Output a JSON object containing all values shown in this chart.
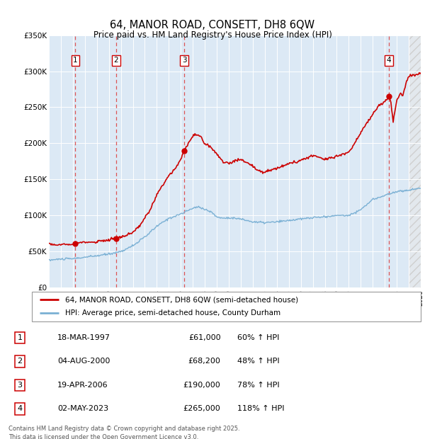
{
  "title": "64, MANOR ROAD, CONSETT, DH8 6QW",
  "subtitle": "Price paid vs. HM Land Registry's House Price Index (HPI)",
  "legend_line1": "64, MANOR ROAD, CONSETT, DH8 6QW (semi-detached house)",
  "legend_line2": "HPI: Average price, semi-detached house, County Durham",
  "footer": "Contains HM Land Registry data © Crown copyright and database right 2025.\nThis data is licensed under the Open Government Licence v3.0.",
  "transactions": [
    {
      "num": 1,
      "date": "18-MAR-1997",
      "price": 61000,
      "year": 1997.21,
      "hpi_pct": "60%"
    },
    {
      "num": 2,
      "date": "04-AUG-2000",
      "price": 68200,
      "year": 2000.59,
      "hpi_pct": "48%"
    },
    {
      "num": 3,
      "date": "19-APR-2006",
      "price": 190000,
      "year": 2006.3,
      "hpi_pct": "78%"
    },
    {
      "num": 4,
      "date": "02-MAY-2023",
      "price": 265000,
      "year": 2023.34,
      "hpi_pct": "118%"
    }
  ],
  "xlim": [
    1995,
    2026
  ],
  "ylim": [
    0,
    350000
  ],
  "yticks": [
    0,
    50000,
    100000,
    150000,
    200000,
    250000,
    300000,
    350000
  ],
  "ytick_labels": [
    "£0",
    "£50K",
    "£100K",
    "£150K",
    "£200K",
    "£250K",
    "£300K",
    "£350K"
  ],
  "bg_color": "#dce9f5",
  "grid_color": "#ffffff",
  "red_color": "#cc0000",
  "blue_color": "#7ab0d4",
  "table_rows": [
    [
      1,
      "18-MAR-1997",
      "£61,000",
      "60% ↑ HPI"
    ],
    [
      2,
      "04-AUG-2000",
      "£68,200",
      "48% ↑ HPI"
    ],
    [
      3,
      "19-APR-2006",
      "£190,000",
      "78% ↑ HPI"
    ],
    [
      4,
      "02-MAY-2023",
      "£265,000",
      "118% ↑ HPI"
    ]
  ]
}
